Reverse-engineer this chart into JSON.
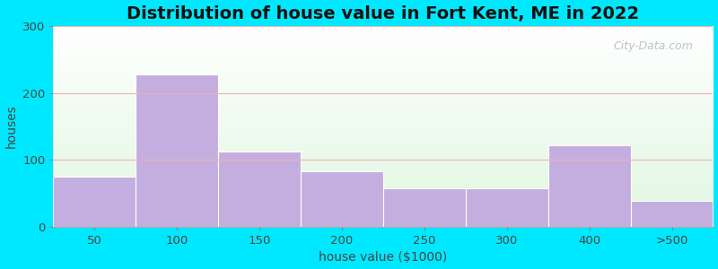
{
  "title": "Distribution of house value in Fort Kent, ME in 2022",
  "xlabel": "house value ($1000)",
  "ylabel": "houses",
  "bar_labels": [
    "50",
    "100",
    "150",
    "200",
    "250",
    "300",
    "400",
    ">500"
  ],
  "bar_values": [
    75,
    228,
    112,
    83,
    57,
    57,
    122,
    38
  ],
  "bar_color": "#c4aee0",
  "bar_edgecolor": "#ffffff",
  "ylim": [
    0,
    300
  ],
  "yticks": [
    0,
    100,
    200,
    300
  ],
  "background_outer": "#00e8ff",
  "grid_color": "#f0b0b0",
  "title_fontsize": 14,
  "axis_fontsize": 10,
  "tick_fontsize": 9.5,
  "watermark_text": "City-Data.com"
}
